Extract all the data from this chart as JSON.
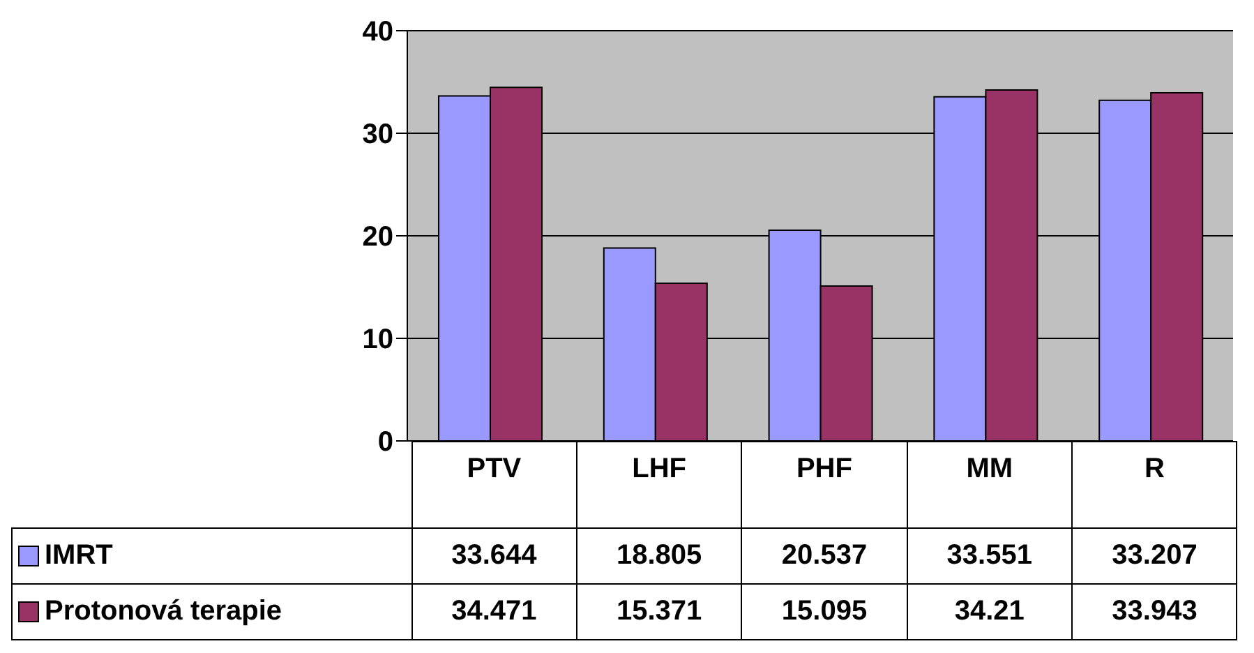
{
  "chart_data": {
    "type": "bar",
    "categories": [
      "PTV",
      "LHF",
      "PHF",
      "MM",
      "R"
    ],
    "series": [
      {
        "name": "IMRT",
        "color": "#9999ff",
        "values": [
          33.644,
          18.805,
          20.537,
          33.551,
          33.207
        ]
      },
      {
        "name": "Protonová terapie",
        "color": "#993366",
        "values": [
          34.471,
          15.371,
          15.095,
          34.21,
          33.943
        ]
      }
    ],
    "ylim": [
      0,
      40
    ],
    "yticks": [
      0,
      10,
      20,
      30,
      40
    ],
    "grid": "y",
    "legend": "bottom",
    "data_labels": true
  }
}
